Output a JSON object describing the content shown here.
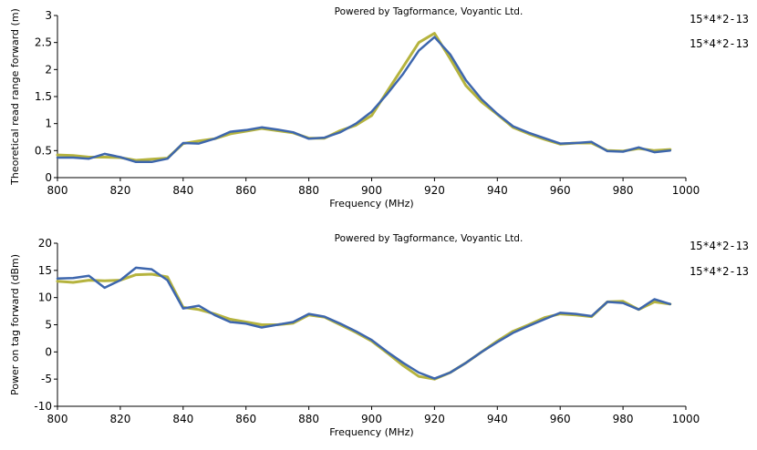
{
  "colors": {
    "series_a": "#b5b33e",
    "series_b": "#3d66ad",
    "axis": "#000000",
    "background": "#ffffff"
  },
  "chart_data": [
    {
      "type": "line",
      "credit": "Powered by Tagformance, Voyantic Ltd.",
      "xlabel": "Frequency (MHz)",
      "ylabel": "Theoretical read range forward (m)",
      "xlim": [
        800,
        1000
      ],
      "ylim": [
        0,
        3
      ],
      "xticks": [
        800,
        820,
        840,
        860,
        880,
        900,
        920,
        940,
        960,
        980,
        1000
      ],
      "yticks": [
        0,
        0.5,
        1,
        1.5,
        2,
        2.5,
        3
      ],
      "ytick_labels": [
        "0",
        "0.5",
        "1",
        "1.5",
        "2",
        "2.5",
        "3"
      ],
      "grid": false,
      "legend_position": "right",
      "series": [
        {
          "name": "15*4*2-13",
          "color": "#b5b33e",
          "x": [
            800,
            805,
            810,
            815,
            820,
            825,
            830,
            835,
            840,
            845,
            850,
            855,
            860,
            865,
            870,
            875,
            880,
            885,
            890,
            895,
            900,
            905,
            910,
            915,
            920,
            925,
            930,
            935,
            940,
            945,
            950,
            955,
            960,
            965,
            970,
            975,
            980,
            985,
            990,
            995
          ],
          "values": [
            0.42,
            0.41,
            0.38,
            0.38,
            0.37,
            0.32,
            0.34,
            0.36,
            0.63,
            0.68,
            0.72,
            0.81,
            0.86,
            0.91,
            0.87,
            0.83,
            0.73,
            0.73,
            0.87,
            0.97,
            1.15,
            1.6,
            2.05,
            2.5,
            2.67,
            2.2,
            1.7,
            1.4,
            1.17,
            0.93,
            0.81,
            0.71,
            0.62,
            0.64,
            0.64,
            0.5,
            0.49,
            0.54,
            0.5,
            0.52
          ]
        },
        {
          "name": "15*4*2-13",
          "color": "#3d66ad",
          "x": [
            800,
            805,
            810,
            815,
            820,
            825,
            830,
            835,
            840,
            845,
            850,
            855,
            860,
            865,
            870,
            875,
            880,
            885,
            890,
            895,
            900,
            905,
            910,
            915,
            920,
            925,
            930,
            935,
            940,
            945,
            950,
            955,
            960,
            965,
            970,
            975,
            980,
            985,
            990,
            995
          ],
          "values": [
            0.37,
            0.37,
            0.35,
            0.44,
            0.38,
            0.29,
            0.29,
            0.35,
            0.64,
            0.63,
            0.72,
            0.85,
            0.88,
            0.93,
            0.89,
            0.84,
            0.72,
            0.74,
            0.84,
            1.0,
            1.22,
            1.55,
            1.92,
            2.35,
            2.6,
            2.28,
            1.8,
            1.45,
            1.18,
            0.95,
            0.83,
            0.73,
            0.63,
            0.64,
            0.66,
            0.49,
            0.48,
            0.56,
            0.47,
            0.5
          ]
        }
      ]
    },
    {
      "type": "line",
      "credit": "Powered by Tagformance, Voyantic Ltd.",
      "xlabel": "Frequency (MHz)",
      "ylabel": "Power on tag forward (dBm)",
      "xlim": [
        800,
        1000
      ],
      "ylim": [
        -10,
        20
      ],
      "xticks": [
        800,
        820,
        840,
        860,
        880,
        900,
        920,
        940,
        960,
        980,
        1000
      ],
      "yticks": [
        -10,
        -5,
        0,
        5,
        10,
        15,
        20
      ],
      "ytick_labels": [
        "-10",
        "-5",
        "0",
        "5",
        "10",
        "15",
        "20"
      ],
      "grid": false,
      "legend_position": "right",
      "series": [
        {
          "name": "15*4*2-13",
          "color": "#b5b33e",
          "x": [
            800,
            805,
            810,
            815,
            820,
            825,
            830,
            835,
            840,
            845,
            850,
            855,
            860,
            865,
            870,
            875,
            880,
            885,
            890,
            895,
            900,
            905,
            910,
            915,
            920,
            925,
            930,
            935,
            940,
            945,
            950,
            955,
            960,
            965,
            970,
            975,
            980,
            985,
            990,
            995
          ],
          "values": [
            13.0,
            12.8,
            13.2,
            13.1,
            13.2,
            14.2,
            14.3,
            13.8,
            8.2,
            7.8,
            7.0,
            6.0,
            5.5,
            5.0,
            5.0,
            5.3,
            6.8,
            6.4,
            5.0,
            3.6,
            2.0,
            -0.2,
            -2.5,
            -4.5,
            -5.0,
            -3.8,
            -2.0,
            0.0,
            2.0,
            3.8,
            5.0,
            6.3,
            7.0,
            6.8,
            6.5,
            9.2,
            9.3,
            7.8,
            9.2,
            8.8
          ]
        },
        {
          "name": "15*4*2-13",
          "color": "#3d66ad",
          "x": [
            800,
            805,
            810,
            815,
            820,
            825,
            830,
            835,
            840,
            845,
            850,
            855,
            860,
            865,
            870,
            875,
            880,
            885,
            890,
            895,
            900,
            905,
            910,
            915,
            920,
            925,
            930,
            935,
            940,
            945,
            950,
            955,
            960,
            965,
            970,
            975,
            980,
            985,
            990,
            995
          ],
          "values": [
            13.5,
            13.6,
            14.0,
            11.8,
            13.2,
            15.5,
            15.2,
            13.2,
            8.0,
            8.5,
            6.8,
            5.5,
            5.2,
            4.5,
            5.0,
            5.5,
            7.0,
            6.5,
            5.2,
            3.8,
            2.2,
            0.0,
            -2.0,
            -3.8,
            -4.9,
            -3.8,
            -2.0,
            0.0,
            1.8,
            3.5,
            4.8,
            6.0,
            7.2,
            7.0,
            6.6,
            9.2,
            9.0,
            7.8,
            9.7,
            8.8
          ]
        }
      ]
    }
  ]
}
